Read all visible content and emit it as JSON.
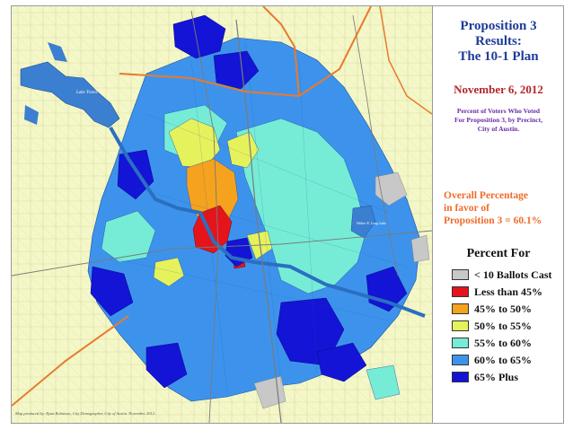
{
  "title": [
    "Proposition 3",
    "Results:",
    "The 10-1 Plan"
  ],
  "date": "November 6, 2012",
  "subtitle": [
    "Percent of Voters Who Voted",
    "For Proposition 3, by Precinct,",
    "City of Austin."
  ],
  "overall": [
    "Overall Percentage",
    "in favor of",
    "Proposition 3 = 60.1%"
  ],
  "legend": {
    "title": "Percent For",
    "items": [
      {
        "label": "< 10 Ballots Cast",
        "color": "#c8c8c8"
      },
      {
        "label": "Less than 45%",
        "color": "#e5141b"
      },
      {
        "label": "45% to 50%",
        "color": "#f5a21e"
      },
      {
        "label": "50% to 55%",
        "color": "#e6f25c"
      },
      {
        "label": "55% to 60%",
        "color": "#76ecd6"
      },
      {
        "label": "60% to 65%",
        "color": "#3d93ec"
      },
      {
        "label": "65% Plus",
        "color": "#1414d6"
      }
    ]
  },
  "map": {
    "lake_label": "Lake Travis",
    "lake2_label": "Walter E. Long Lake"
  },
  "credit": "Map produced by: Ryan Robinson, City Demographer, City of Austin. November 2012."
}
